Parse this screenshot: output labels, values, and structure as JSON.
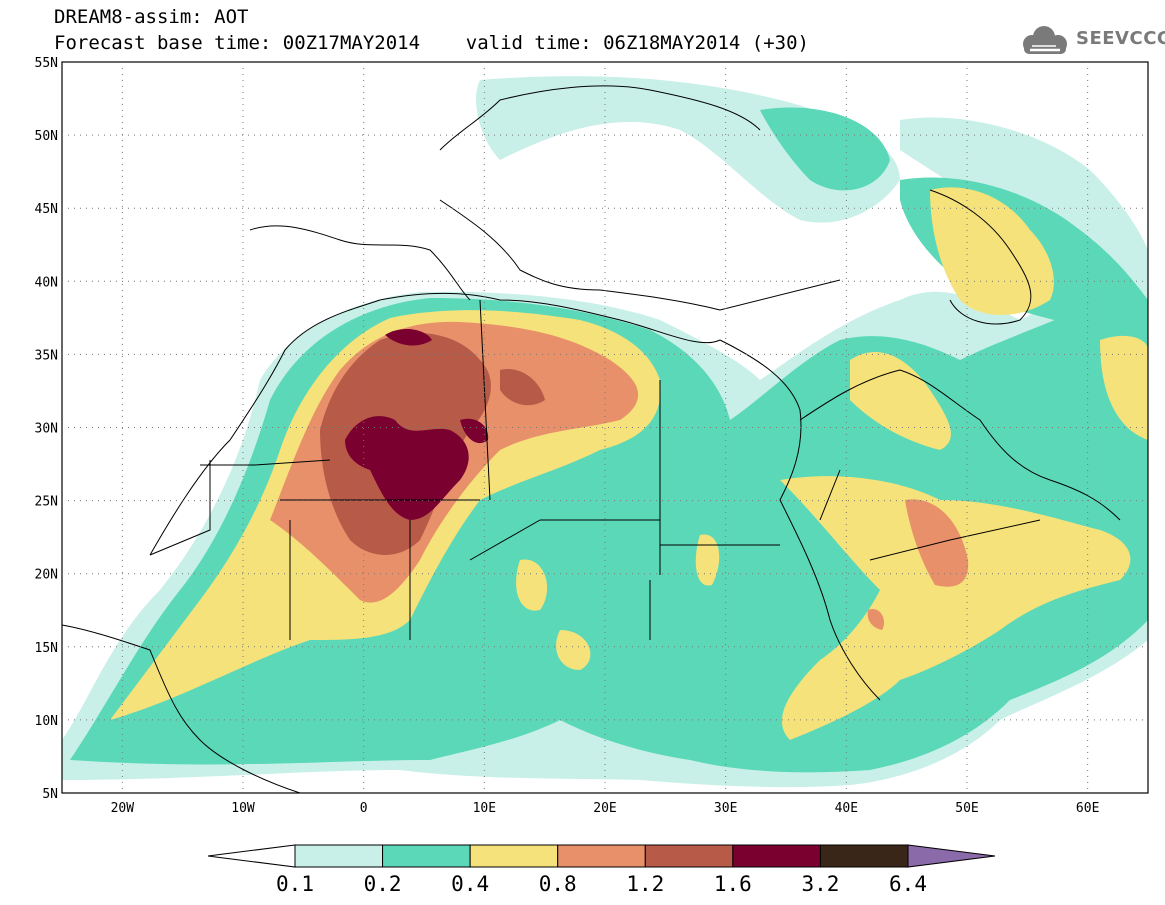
{
  "header": {
    "title_line1": "DREAM8-assim: AOT",
    "title_line2": "Forecast base time: 00Z17MAY2014    valid time: 06Z18MAY2014 (+30)",
    "logo_text": "SEEVCCC"
  },
  "map": {
    "lon_range": [
      -25,
      65
    ],
    "lat_range": [
      5,
      55
    ],
    "lon_ticks": [
      "20W",
      "10W",
      "0",
      "10E",
      "20E",
      "30E",
      "40E",
      "50E",
      "60E"
    ],
    "lat_ticks": [
      "55N",
      "50N",
      "45N",
      "40N",
      "35N",
      "30N",
      "25N",
      "20N",
      "15N",
      "10N",
      "5N"
    ],
    "grid": "dotted"
  },
  "colorbar": {
    "labels": [
      "0.1",
      "0.2",
      "0.4",
      "0.8",
      "1.2",
      "1.6",
      "3.2",
      "6.4"
    ],
    "colors": [
      "#ffffff",
      "#c8f0e8",
      "#5ad8b8",
      "#f5e27a",
      "#e8906a",
      "#b85a48",
      "#7a0030",
      "#3a2618",
      "#8a6aa8"
    ]
  }
}
